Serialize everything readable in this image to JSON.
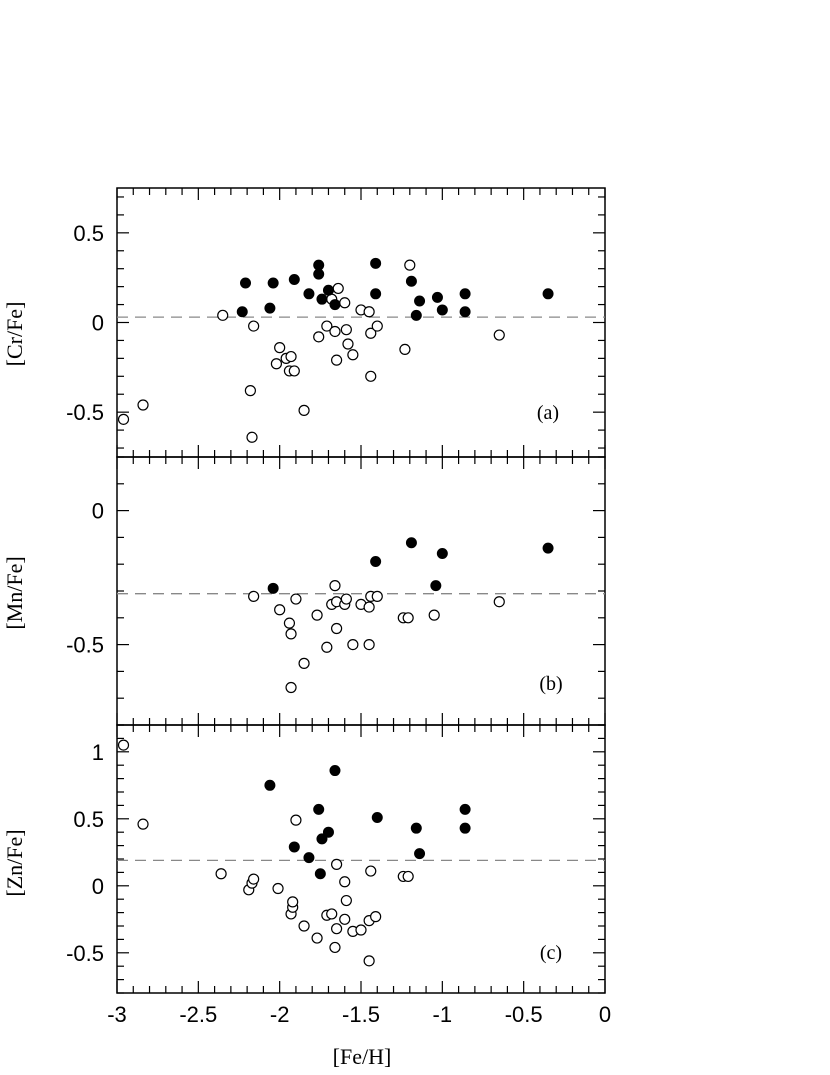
{
  "chart_data": {
    "type": "scatter",
    "xlabel": "[Fe/H]",
    "xlim": [
      -3,
      0
    ],
    "xticks": [
      -3,
      -2.5,
      -2,
      -1.5,
      -1,
      -0.5,
      0
    ],
    "xtick_labels": [
      "-3",
      "-2.5",
      "-2",
      "-1.5",
      "-1",
      "-0.5",
      "0"
    ],
    "marker_legend": {
      "open": "open circle",
      "filled": "filled circle"
    },
    "panels": [
      {
        "id": "cr",
        "label": "(a)",
        "ylabel": "[Cr/Fe]",
        "ylim": [
          -0.75,
          0.75
        ],
        "yticks": [
          -0.5,
          0,
          0.5
        ],
        "ytick_labels": [
          "-0.5",
          "0",
          "0.5"
        ],
        "reference_line": 0.03,
        "open": [
          [
            -2.96,
            -0.54
          ],
          [
            -2.84,
            -0.46
          ],
          [
            -2.35,
            0.04
          ],
          [
            -2.18,
            -0.38
          ],
          [
            -2.17,
            -0.64
          ],
          [
            -2.16,
            -0.02
          ],
          [
            -2.02,
            -0.23
          ],
          [
            -2.0,
            -0.14
          ],
          [
            -1.96,
            -0.2
          ],
          [
            -1.94,
            -0.27
          ],
          [
            -1.93,
            -0.19
          ],
          [
            -1.91,
            -0.27
          ],
          [
            -1.85,
            -0.49
          ],
          [
            -1.76,
            -0.08
          ],
          [
            -1.71,
            -0.02
          ],
          [
            -1.68,
            0.13
          ],
          [
            -1.66,
            -0.05
          ],
          [
            -1.65,
            -0.21
          ],
          [
            -1.64,
            0.19
          ],
          [
            -1.6,
            0.11
          ],
          [
            -1.59,
            -0.04
          ],
          [
            -1.58,
            -0.12
          ],
          [
            -1.55,
            -0.18
          ],
          [
            -1.5,
            0.07
          ],
          [
            -1.45,
            0.06
          ],
          [
            -1.44,
            -0.06
          ],
          [
            -1.44,
            -0.3
          ],
          [
            -1.4,
            -0.02
          ],
          [
            -1.23,
            -0.15
          ],
          [
            -1.2,
            0.32
          ],
          [
            -0.65,
            -0.07
          ]
        ],
        "filled": [
          [
            -2.23,
            0.06
          ],
          [
            -2.21,
            0.22
          ],
          [
            -2.06,
            0.08
          ],
          [
            -2.04,
            0.22
          ],
          [
            -1.91,
            0.24
          ],
          [
            -1.82,
            0.16
          ],
          [
            -1.76,
            0.32
          ],
          [
            -1.76,
            0.27
          ],
          [
            -1.74,
            0.13
          ],
          [
            -1.7,
            0.18
          ],
          [
            -1.66,
            0.1
          ],
          [
            -1.41,
            0.33
          ],
          [
            -1.41,
            0.16
          ],
          [
            -1.19,
            0.23
          ],
          [
            -1.16,
            0.04
          ],
          [
            -1.14,
            0.12
          ],
          [
            -1.03,
            0.14
          ],
          [
            -1.0,
            0.07
          ],
          [
            -0.86,
            0.16
          ],
          [
            -0.86,
            0.06
          ],
          [
            -0.35,
            0.16
          ]
        ]
      },
      {
        "id": "mn",
        "label": "(b)",
        "ylabel": "[Mn/Fe]",
        "ylim": [
          -0.8,
          0.2
        ],
        "yticks": [
          -0.5,
          0
        ],
        "ytick_labels": [
          "-0.5",
          "0"
        ],
        "reference_line": -0.31,
        "open": [
          [
            -2.16,
            -0.32
          ],
          [
            -2.0,
            -0.37
          ],
          [
            -1.94,
            -0.42
          ],
          [
            -1.93,
            -0.46
          ],
          [
            -1.93,
            -0.66
          ],
          [
            -1.9,
            -0.33
          ],
          [
            -1.85,
            -0.57
          ],
          [
            -1.77,
            -0.39
          ],
          [
            -1.71,
            -0.51
          ],
          [
            -1.68,
            -0.35
          ],
          [
            -1.66,
            -0.28
          ],
          [
            -1.65,
            -0.34
          ],
          [
            -1.65,
            -0.44
          ],
          [
            -1.6,
            -0.35
          ],
          [
            -1.59,
            -0.33
          ],
          [
            -1.55,
            -0.5
          ],
          [
            -1.5,
            -0.35
          ],
          [
            -1.45,
            -0.36
          ],
          [
            -1.45,
            -0.5
          ],
          [
            -1.44,
            -0.32
          ],
          [
            -1.4,
            -0.32
          ],
          [
            -1.24,
            -0.4
          ],
          [
            -1.21,
            -0.4
          ],
          [
            -1.05,
            -0.39
          ],
          [
            -0.65,
            -0.34
          ]
        ],
        "filled": [
          [
            -2.04,
            -0.29
          ],
          [
            -1.41,
            -0.19
          ],
          [
            -1.19,
            -0.12
          ],
          [
            -1.04,
            -0.28
          ],
          [
            -1.0,
            -0.16
          ],
          [
            -0.35,
            -0.14
          ]
        ]
      },
      {
        "id": "zn",
        "label": "(c)",
        "ylabel": "[Zn/Fe]",
        "ylim": [
          -0.8,
          1.2
        ],
        "yticks": [
          -0.5,
          0,
          0.5,
          1
        ],
        "ytick_labels": [
          "-0.5",
          "0",
          "0.5",
          "1"
        ],
        "reference_line": 0.19,
        "open": [
          [
            -2.96,
            1.05
          ],
          [
            -2.84,
            0.46
          ],
          [
            -2.36,
            0.09
          ],
          [
            -2.19,
            -0.03
          ],
          [
            -2.17,
            0.02
          ],
          [
            -2.16,
            0.05
          ],
          [
            -2.01,
            -0.02
          ],
          [
            -1.93,
            -0.21
          ],
          [
            -1.92,
            -0.16
          ],
          [
            -1.92,
            -0.12
          ],
          [
            -1.9,
            0.49
          ],
          [
            -1.85,
            -0.3
          ],
          [
            -1.77,
            -0.39
          ],
          [
            -1.71,
            -0.22
          ],
          [
            -1.68,
            -0.21
          ],
          [
            -1.66,
            -0.46
          ],
          [
            -1.65,
            0.16
          ],
          [
            -1.65,
            -0.32
          ],
          [
            -1.6,
            -0.25
          ],
          [
            -1.6,
            0.03
          ],
          [
            -1.59,
            -0.11
          ],
          [
            -1.55,
            -0.34
          ],
          [
            -1.5,
            -0.33
          ],
          [
            -1.45,
            -0.56
          ],
          [
            -1.45,
            -0.26
          ],
          [
            -1.44,
            0.11
          ],
          [
            -1.41,
            -0.23
          ],
          [
            -1.24,
            0.07
          ],
          [
            -1.21,
            0.07
          ]
        ],
        "filled": [
          [
            -2.06,
            0.75
          ],
          [
            -1.91,
            0.29
          ],
          [
            -1.82,
            0.21
          ],
          [
            -1.76,
            0.57
          ],
          [
            -1.75,
            0.09
          ],
          [
            -1.74,
            0.35
          ],
          [
            -1.7,
            0.4
          ],
          [
            -1.66,
            0.86
          ],
          [
            -1.4,
            0.51
          ],
          [
            -1.16,
            0.43
          ],
          [
            -1.14,
            0.24
          ],
          [
            -0.86,
            0.57
          ],
          [
            -0.86,
            0.43
          ]
        ]
      }
    ]
  }
}
